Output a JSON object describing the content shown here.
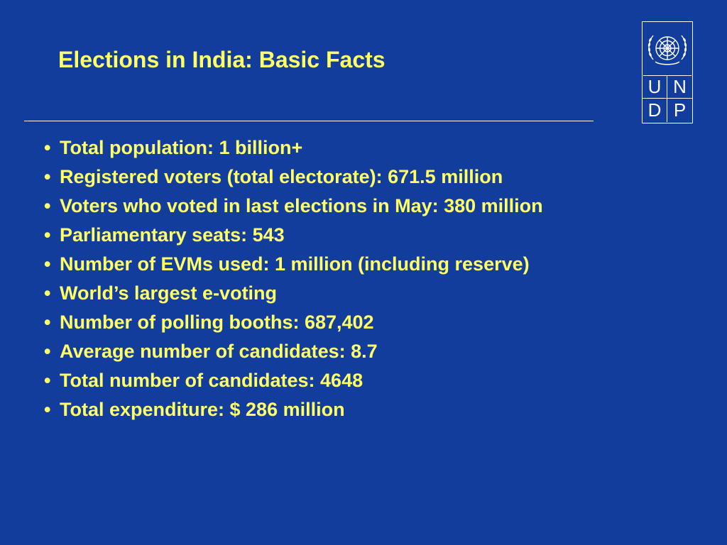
{
  "title": "Elections in India: Basic Facts",
  "bullet_glyph": "•",
  "bullets": [
    "Total population: 1 billion+",
    "Registered voters (total electorate): 671.5 million",
    "Voters who voted in last elections in May: 380 million",
    "Parliamentary seats: 543",
    "Number of EVMs used: 1 million (including reserve)",
    "World’s largest e-voting",
    "Number of polling booths: 687,402",
    "Average number of candidates: 8.7",
    "Total number of candidates: 4648",
    "Total expenditure: $ 286 million"
  ],
  "logo": {
    "icon": "un-emblem-icon",
    "letters": [
      "U",
      "N",
      "D",
      "P"
    ]
  },
  "colors": {
    "background": "#123d9c",
    "text": "#ffff66",
    "rule": "#ffffff",
    "logo": "#ffffff"
  }
}
